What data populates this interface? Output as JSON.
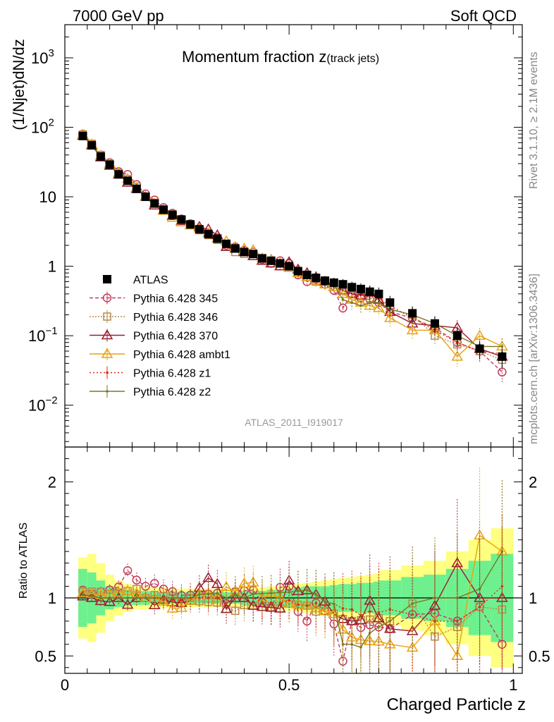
{
  "header": {
    "left": "7000 GeV pp",
    "right": "Soft QCD"
  },
  "side_labels": {
    "rivet": "Rivet 3.1.10, ≥ 2.1M events",
    "mcplots": "mcplots.cern.ch [arXiv:1306.3436]"
  },
  "chart_data": [
    {
      "type": "line",
      "title": "Momentum fraction z",
      "title_sub": "(track jets)",
      "ylabel": "(1/Njet)dN/dz",
      "y_scale": "log",
      "ylim": [
        0.0025,
        3000
      ],
      "xlim": [
        0,
        1.02
      ],
      "y_ticks": [
        {
          "v": 1000,
          "base": "10",
          "exp": "3"
        },
        {
          "v": 100,
          "base": "10",
          "exp": "2"
        },
        {
          "v": 10,
          "base": "10",
          "exp": ""
        },
        {
          "v": 1,
          "base": "1",
          "exp": ""
        },
        {
          "v": 0.1,
          "base": "10",
          "exp": "−1"
        },
        {
          "v": 0.01,
          "base": "10",
          "exp": "−2"
        }
      ],
      "watermark": "ATLAS_2011_I919017",
      "legend_position": "left-middle",
      "x": [
        0.04,
        0.06,
        0.08,
        0.1,
        0.12,
        0.14,
        0.16,
        0.18,
        0.2,
        0.22,
        0.24,
        0.26,
        0.28,
        0.3,
        0.32,
        0.34,
        0.36,
        0.38,
        0.4,
        0.42,
        0.44,
        0.46,
        0.48,
        0.5,
        0.52,
        0.54,
        0.56,
        0.58,
        0.6,
        0.62,
        0.64,
        0.66,
        0.68,
        0.7,
        0.725,
        0.775,
        0.825,
        0.875,
        0.925,
        0.975
      ],
      "series": [
        {
          "name": "ATLAS",
          "color": "#000000",
          "marker": "filled-square",
          "dash": "none",
          "values": [
            75,
            55,
            38,
            29,
            21,
            17,
            13,
            10,
            8,
            6.5,
            5.5,
            4.7,
            4.0,
            3.4,
            2.9,
            2.5,
            2.1,
            1.8,
            1.6,
            1.5,
            1.3,
            1.2,
            1.1,
            1.0,
            0.85,
            0.75,
            0.68,
            0.62,
            0.58,
            0.55,
            0.5,
            0.47,
            0.43,
            0.4,
            0.3,
            0.21,
            0.15,
            0.1,
            0.065,
            0.05
          ]
        },
        {
          "name": "Pythia 6.428 345",
          "color": "#c23b5c",
          "marker": "open-circle",
          "dash": "5,3",
          "values": [
            80,
            57,
            40,
            31,
            23,
            21,
            15,
            11,
            9,
            7,
            5.8,
            4.8,
            4.1,
            3.5,
            3.0,
            2.6,
            2.0,
            1.9,
            1.7,
            1.6,
            1.25,
            1.1,
            1.2,
            1.1,
            0.75,
            0.6,
            0.65,
            0.55,
            0.45,
            0.25,
            0.4,
            0.35,
            0.33,
            0.3,
            0.22,
            0.18,
            0.13,
            0.08,
            0.06,
            0.03
          ]
        },
        {
          "name": "Pythia 6.428 346",
          "color": "#b8894a",
          "marker": "open-square",
          "dash": "2,2",
          "values": [
            79,
            58,
            40,
            30,
            22,
            18,
            14,
            10,
            8.2,
            6.6,
            5.6,
            4.5,
            4.0,
            3.3,
            2.8,
            2.4,
            1.9,
            1.6,
            1.5,
            1.4,
            1.2,
            1.1,
            1.0,
            0.95,
            0.8,
            0.7,
            0.6,
            0.55,
            0.5,
            0.45,
            0.4,
            0.38,
            0.35,
            0.33,
            0.24,
            0.2,
            0.1,
            0.075,
            0.06,
            0.045
          ]
        },
        {
          "name": "Pythia 6.428 370",
          "color": "#9b1b30",
          "marker": "open-triangle",
          "dash": "none",
          "values": [
            76,
            55,
            37,
            28,
            21,
            16,
            13,
            10,
            7.5,
            6.4,
            5.3,
            4.5,
            3.9,
            3.7,
            3.4,
            2.8,
            1.9,
            1.8,
            1.6,
            1.4,
            1.2,
            1.1,
            1.0,
            1.15,
            0.9,
            0.8,
            0.7,
            0.6,
            0.5,
            0.45,
            0.4,
            0.38,
            0.42,
            0.33,
            0.22,
            0.15,
            0.14,
            0.13,
            0.065,
            0.05
          ]
        },
        {
          "name": "Pythia 6.428 ambt1",
          "color": "#e8a20f",
          "marker": "open-triangle",
          "dash": "none",
          "values": [
            78,
            57,
            39,
            30,
            22,
            18,
            13.5,
            10,
            8,
            6.3,
            5.0,
            4.3,
            3.9,
            3.5,
            3.0,
            2.5,
            2.3,
            1.9,
            1.8,
            1.7,
            1.3,
            1.25,
            1.1,
            0.95,
            0.8,
            0.7,
            0.62,
            0.55,
            0.5,
            0.4,
            0.33,
            0.3,
            0.27,
            0.25,
            0.18,
            0.12,
            0.12,
            0.05,
            0.1,
            0.07
          ]
        },
        {
          "name": "Pythia 6.428 z1",
          "color": "#dd2a17",
          "marker": "dot",
          "dash": "2,3",
          "values": [
            77,
            56,
            38,
            29,
            21,
            17,
            13,
            10,
            8,
            6.4,
            5.4,
            4.6,
            4.0,
            3.4,
            2.9,
            2.5,
            2.0,
            1.8,
            1.6,
            1.5,
            1.25,
            1.15,
            1.05,
            0.98,
            0.8,
            0.7,
            0.65,
            0.58,
            0.55,
            0.5,
            0.45,
            0.4,
            0.38,
            0.35,
            0.27,
            0.18,
            0.12,
            0.08,
            0.06,
            0.055
          ]
        },
        {
          "name": "Pythia 6.428 z2",
          "color": "#7a7820",
          "marker": "dot",
          "dash": "none",
          "values": [
            77,
            56,
            38,
            29,
            21,
            17,
            13,
            10,
            8,
            6.5,
            5.5,
            4.7,
            4.0,
            3.5,
            3.0,
            2.6,
            2.1,
            1.85,
            1.6,
            1.55,
            1.35,
            1.25,
            1.15,
            1.05,
            0.9,
            0.8,
            0.7,
            0.6,
            0.55,
            0.33,
            0.3,
            0.27,
            0.3,
            0.3,
            0.24,
            0.2,
            0.15,
            0.1,
            0.07,
            0.07
          ]
        }
      ]
    },
    {
      "type": "line",
      "ylabel": "Ratio to ATLAS",
      "xlabel": "Charged Particle z",
      "ylim": [
        0.35,
        2.3
      ],
      "xlim": [
        0,
        1.02
      ],
      "y_ticks": [
        "0.5",
        "1",
        "2"
      ],
      "x_ticks": [
        "0",
        "0.5",
        "1"
      ],
      "band_inner": [
        0.25,
        0.22,
        0.15,
        0.1,
        0.08,
        0.07,
        0.06,
        0.06,
        0.05,
        0.05,
        0.05,
        0.05,
        0.05,
        0.05,
        0.05,
        0.05,
        0.05,
        0.05,
        0.06,
        0.06,
        0.06,
        0.07,
        0.07,
        0.08,
        0.09,
        0.1,
        0.1,
        0.1,
        0.11,
        0.12,
        0.12,
        0.13,
        0.13,
        0.14,
        0.15,
        0.18,
        0.2,
        0.25,
        0.32,
        0.38
      ],
      "band_outer": [
        0.35,
        0.38,
        0.3,
        0.2,
        0.15,
        0.12,
        0.1,
        0.1,
        0.09,
        0.09,
        0.08,
        0.08,
        0.08,
        0.08,
        0.08,
        0.08,
        0.08,
        0.08,
        0.09,
        0.09,
        0.09,
        0.1,
        0.1,
        0.11,
        0.12,
        0.13,
        0.14,
        0.15,
        0.16,
        0.17,
        0.18,
        0.19,
        0.2,
        0.21,
        0.24,
        0.28,
        0.32,
        0.4,
        0.5,
        0.6
      ],
      "band_colors": {
        "inner": "#6ef08f",
        "outer": "#ffff80"
      }
    }
  ]
}
